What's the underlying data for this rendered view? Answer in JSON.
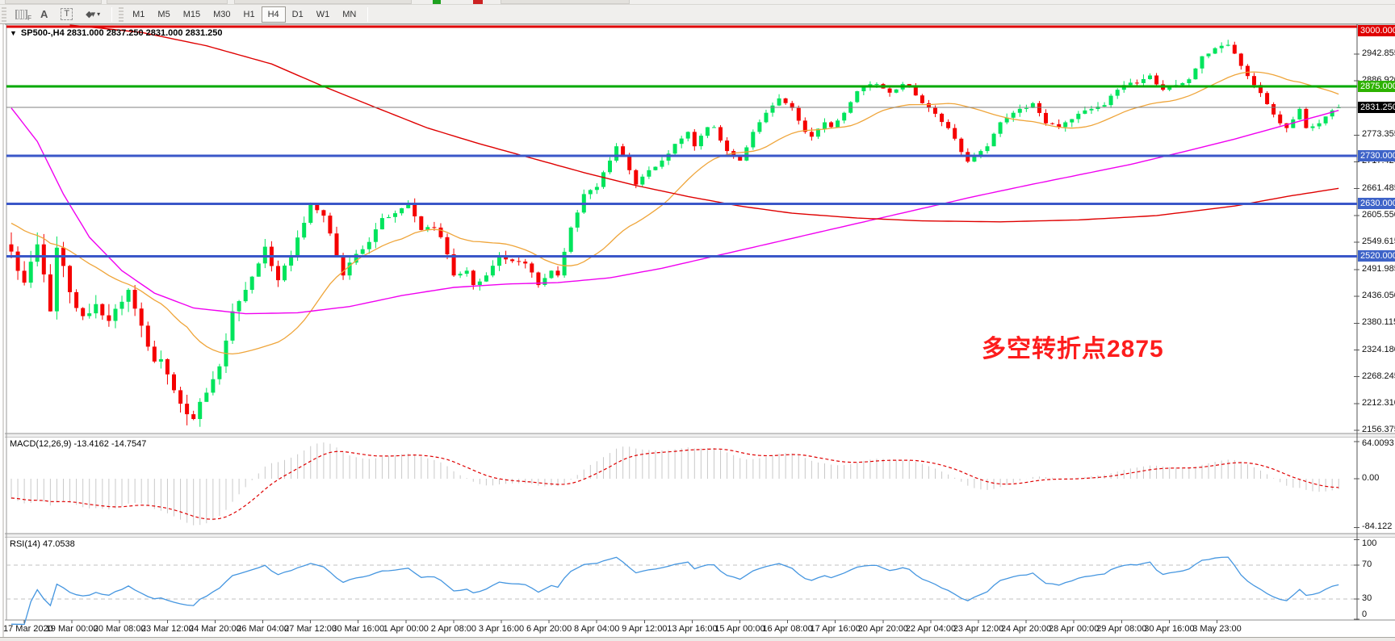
{
  "toolbar": {
    "left_tools": {
      "grid_f": "F",
      "label_tool": "A",
      "text_tool": "T"
    },
    "timeframes": [
      "M1",
      "M5",
      "M15",
      "M30",
      "H1",
      "H4",
      "D1",
      "W1",
      "MN"
    ],
    "active_timeframe": "H4"
  },
  "chart": {
    "title": "SP500-,H4 2831.000 2837.250 2831.000 2831.250",
    "symbol": "SP500-",
    "timeframe": "H4",
    "current_bar": {
      "open": 2831.0,
      "high": 2837.25,
      "low": 2831.0,
      "close": 2831.25
    }
  },
  "annotation": {
    "text": "多空转折点2875",
    "color": "#fd1c1c"
  },
  "panes": {
    "macd": {
      "label": "MACD(12,26,9) -13.4162 -14.7547",
      "axis_labels": [
        "64.0093",
        "0.00",
        "-84.122"
      ],
      "axis_values": [
        64.0093,
        0,
        -84.122
      ]
    },
    "rsi": {
      "label": "RSI(14) 47.0538",
      "axis_labels": [
        "100",
        "70",
        "30",
        "0"
      ],
      "axis_values": [
        100,
        70,
        30,
        0
      ],
      "level_lines": [
        70,
        30
      ]
    }
  },
  "main_axis": {
    "ticks": [
      {
        "label": "2942.855",
        "value": 2942.855
      },
      {
        "label": "2886.920",
        "value": 2886.92
      },
      {
        "label": "2773.355",
        "value": 2773.355
      },
      {
        "label": "2717.420",
        "value": 2717.42
      },
      {
        "label": "2661.485",
        "value": 2661.485
      },
      {
        "label": "2605.550",
        "value": 2605.55
      },
      {
        "label": "2549.615",
        "value": 2549.615
      },
      {
        "label": "2491.985",
        "value": 2491.985
      },
      {
        "label": "2436.050",
        "value": 2436.05
      },
      {
        "label": "2380.115",
        "value": 2380.115
      },
      {
        "label": "2324.180",
        "value": 2324.18
      },
      {
        "label": "2268.245",
        "value": 2268.245
      },
      {
        "label": "2212.310",
        "value": 2212.31
      },
      {
        "label": "2156.375",
        "value": 2156.375
      }
    ]
  },
  "time_axis": {
    "labels": [
      "17 Mar 2020",
      "19 Mar 00:00",
      "20 Mar 08:00",
      "23 Mar 12:00",
      "24 Mar 20:00",
      "26 Mar 04:00",
      "27 Mar 12:00",
      "30 Mar 16:00",
      "1 Apr 00:00",
      "2 Apr 08:00",
      "3 Apr 16:00",
      "6 Apr 20:00",
      "8 Apr 04:00",
      "9 Apr 12:00",
      "13 Apr 16:00",
      "15 Apr 00:00",
      "16 Apr 08:00",
      "17 Apr 16:00",
      "20 Apr 20:00",
      "22 Apr 04:00",
      "23 Apr 12:00",
      "24 Apr 20:00",
      "28 Apr 00:00",
      "29 Apr 08:00",
      "30 Apr 16:00",
      "3 May 23:00"
    ]
  },
  "chart_data": {
    "type": "candlestick",
    "symbol": "SP500-",
    "timeframe": "H4",
    "visible_range": "17 Mar 2020 - 4 May 2020",
    "bars": 205,
    "price_axis": {
      "top": 3008.4,
      "bottom": 2149.6
    },
    "last_bar": {
      "open": 2831.0,
      "high": 2837.25,
      "low": 2831.0,
      "close": 2831.25
    },
    "colors": {
      "up": "#00e45c",
      "down": "#f50000",
      "ma_fast": "#efa53a",
      "ma_mid": "#f000f0",
      "ma_slow": "#df0000",
      "macd_hist": "#c9c9c9",
      "macd_signal": "#df0000",
      "rsi": "#4596e0"
    },
    "close_anchors": [
      [
        0,
        2530
      ],
      [
        2,
        2465
      ],
      [
        4,
        2545
      ],
      [
        6,
        2405
      ],
      [
        7,
        2538
      ],
      [
        9,
        2445
      ],
      [
        11,
        2395
      ],
      [
        13,
        2420
      ],
      [
        15,
        2385
      ],
      [
        17,
        2425
      ],
      [
        18,
        2450
      ],
      [
        20,
        2375
      ],
      [
        22,
        2300
      ],
      [
        23,
        2305
      ],
      [
        25,
        2240
      ],
      [
        27,
        2190
      ],
      [
        28,
        2180
      ],
      [
        30,
        2235
      ],
      [
        32,
        2290
      ],
      [
        34,
        2405
      ],
      [
        36,
        2450
      ],
      [
        38,
        2505
      ],
      [
        39,
        2540
      ],
      [
        41,
        2470
      ],
      [
        43,
        2520
      ],
      [
        45,
        2590
      ],
      [
        46,
        2628
      ],
      [
        48,
        2605
      ],
      [
        50,
        2520
      ],
      [
        51,
        2480
      ],
      [
        53,
        2525
      ],
      [
        55,
        2550
      ],
      [
        57,
        2600
      ],
      [
        59,
        2610
      ],
      [
        61,
        2630
      ],
      [
        63,
        2575
      ],
      [
        65,
        2580
      ],
      [
        66,
        2560
      ],
      [
        68,
        2480
      ],
      [
        70,
        2490
      ],
      [
        71,
        2460
      ],
      [
        73,
        2480
      ],
      [
        75,
        2520
      ],
      [
        77,
        2510
      ],
      [
        79,
        2505
      ],
      [
        81,
        2460
      ],
      [
        83,
        2490
      ],
      [
        84,
        2480
      ],
      [
        86,
        2580
      ],
      [
        88,
        2650
      ],
      [
        90,
        2665
      ],
      [
        92,
        2720
      ],
      [
        93,
        2750
      ],
      [
        95,
        2700
      ],
      [
        96,
        2670
      ],
      [
        98,
        2700
      ],
      [
        100,
        2720
      ],
      [
        102,
        2755
      ],
      [
        104,
        2780
      ],
      [
        105,
        2750
      ],
      [
        107,
        2790
      ],
      [
        108,
        2790
      ],
      [
        110,
        2740
      ],
      [
        112,
        2720
      ],
      [
        114,
        2780
      ],
      [
        116,
        2820
      ],
      [
        118,
        2850
      ],
      [
        120,
        2830
      ],
      [
        122,
        2780
      ],
      [
        123,
        2770
      ],
      [
        125,
        2800
      ],
      [
        126,
        2790
      ],
      [
        128,
        2820
      ],
      [
        130,
        2865
      ],
      [
        131,
        2875
      ],
      [
        133,
        2880
      ],
      [
        135,
        2862
      ],
      [
        137,
        2880
      ],
      [
        138,
        2875
      ],
      [
        140,
        2840
      ],
      [
        142,
        2818
      ],
      [
        144,
        2788
      ],
      [
        146,
        2738
      ],
      [
        147,
        2718
      ],
      [
        149,
        2740
      ],
      [
        150,
        2750
      ],
      [
        152,
        2800
      ],
      [
        154,
        2820
      ],
      [
        156,
        2830
      ],
      [
        157,
        2840
      ],
      [
        159,
        2798
      ],
      [
        161,
        2790
      ],
      [
        162,
        2800
      ],
      [
        164,
        2818
      ],
      [
        166,
        2828
      ],
      [
        168,
        2836
      ],
      [
        170,
        2868
      ],
      [
        171,
        2878
      ],
      [
        173,
        2882
      ],
      [
        175,
        2898
      ],
      [
        177,
        2868
      ],
      [
        179,
        2878
      ],
      [
        181,
        2890
      ],
      [
        183,
        2938
      ],
      [
        185,
        2955
      ],
      [
        187,
        2962
      ],
      [
        189,
        2918
      ],
      [
        191,
        2878
      ],
      [
        193,
        2838
      ],
      [
        195,
        2798
      ],
      [
        196,
        2788
      ],
      [
        198,
        2828
      ],
      [
        199,
        2788
      ],
      [
        201,
        2798
      ],
      [
        203,
        2825
      ],
      [
        204,
        2831.25
      ]
    ],
    "wick_vol_anchors": [
      [
        0,
        26
      ],
      [
        30,
        24
      ],
      [
        45,
        16
      ],
      [
        70,
        12
      ],
      [
        100,
        10
      ],
      [
        140,
        9
      ],
      [
        185,
        11
      ],
      [
        204,
        8
      ]
    ],
    "levels": [
      {
        "price": 3000.0,
        "label": "3000.000",
        "line": "#df0000",
        "badge": "#df0000",
        "width": 3,
        "kind": "resistance"
      },
      {
        "price": 2875.0,
        "label": "2875.000",
        "line": "#00a800",
        "badge": "#2db200",
        "width": 3,
        "kind": "pivot"
      },
      {
        "price": 2730.0,
        "label": "2730.000",
        "line": "#3a57c8",
        "badge": "#3e63c8",
        "width": 3,
        "kind": "support"
      },
      {
        "price": 2630.0,
        "label": "2630.000",
        "line": "#3a57c8",
        "badge": "#3e63c8",
        "width": 3,
        "kind": "support"
      },
      {
        "price": 2520.0,
        "label": "2520.000",
        "line": "#3a57c8",
        "badge": "#3e63c8",
        "width": 3,
        "kind": "support"
      }
    ],
    "current_price": {
      "price": 2831.25,
      "label": "2831.250",
      "line": "#808080",
      "badge": "#000000"
    },
    "overlays": {
      "ma_fast_orange": {
        "method": "sma",
        "period": 21
      },
      "ma_mid_magenta_anchors": [
        [
          0,
          2830
        ],
        [
          4,
          2760
        ],
        [
          8,
          2650
        ],
        [
          12,
          2560
        ],
        [
          17,
          2490
        ],
        [
          22,
          2443
        ],
        [
          28,
          2412
        ],
        [
          36,
          2400
        ],
        [
          44,
          2402
        ],
        [
          52,
          2415
        ],
        [
          60,
          2438
        ],
        [
          68,
          2455
        ],
        [
          76,
          2462
        ],
        [
          84,
          2465
        ],
        [
          92,
          2475
        ],
        [
          100,
          2495
        ],
        [
          108,
          2520
        ],
        [
          116,
          2545
        ],
        [
          124,
          2570
        ],
        [
          132,
          2595
        ],
        [
          140,
          2620
        ],
        [
          148,
          2645
        ],
        [
          156,
          2668
        ],
        [
          164,
          2690
        ],
        [
          172,
          2712
        ],
        [
          180,
          2738
        ],
        [
          188,
          2765
        ],
        [
          196,
          2795
        ],
        [
          204,
          2825
        ]
      ],
      "ma_slow_red_anchors": [
        [
          0,
          3012
        ],
        [
          10,
          3002
        ],
        [
          20,
          2988
        ],
        [
          30,
          2960
        ],
        [
          40,
          2922
        ],
        [
          48,
          2875
        ],
        [
          56,
          2831
        ],
        [
          64,
          2788
        ],
        [
          72,
          2755
        ],
        [
          80,
          2725
        ],
        [
          88,
          2695
        ],
        [
          96,
          2668
        ],
        [
          104,
          2645
        ],
        [
          112,
          2625
        ],
        [
          120,
          2610
        ],
        [
          130,
          2600
        ],
        [
          140,
          2594
        ],
        [
          152,
          2592
        ],
        [
          164,
          2596
        ],
        [
          176,
          2605
        ],
        [
          188,
          2625
        ],
        [
          196,
          2645
        ],
        [
          204,
          2662
        ]
      ]
    },
    "indicators": {
      "macd": {
        "fast": 12,
        "slow": 26,
        "signal": 9,
        "last_macd": -13.4162,
        "last_signal": -14.7547,
        "axis_range": [
          -84.122,
          64.0093
        ]
      },
      "rsi": {
        "period": 14,
        "last": 47.0538,
        "axis_range": [
          0,
          100
        ],
        "levels": [
          30,
          70
        ]
      }
    }
  }
}
